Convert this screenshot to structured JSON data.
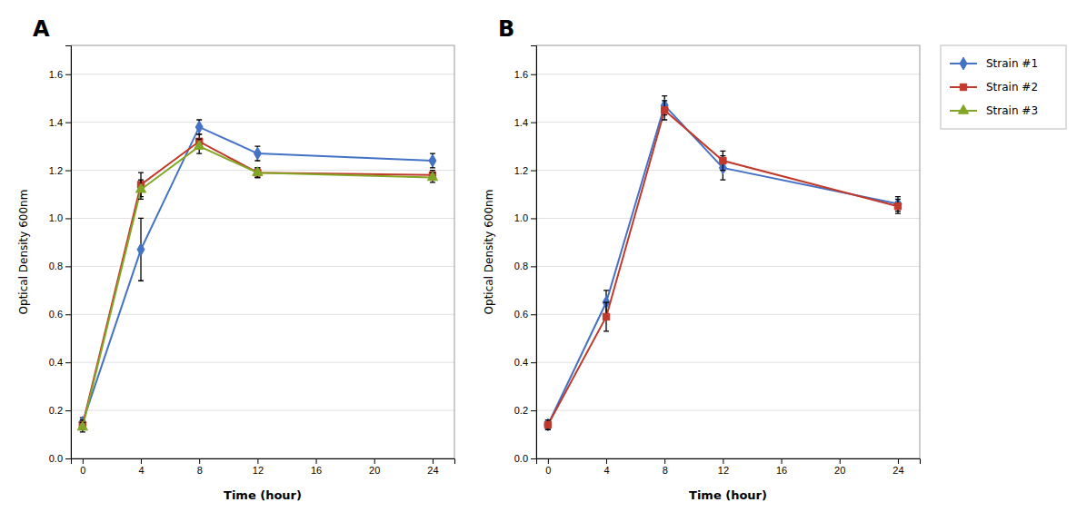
{
  "chart_data": [
    {
      "type": "line",
      "title": "A",
      "x": [
        0,
        4,
        8,
        12,
        24
      ],
      "xlabel": "Time (hour)",
      "ylabel": "Optical Density 600nm",
      "xlim": [
        -0.8,
        25.5
      ],
      "xticks": [
        0,
        4,
        8,
        12,
        16,
        20,
        24
      ],
      "ylim": [
        0,
        1.72
      ],
      "yticks": [
        {
          "value": 0,
          "label": "0.0"
        },
        0.2,
        0.4,
        0.6,
        0.8,
        {
          "value": 1.0,
          "label": "1.0"
        },
        1.2,
        1.4,
        1.6
      ],
      "grid": "y",
      "legend": "upper right",
      "series": [
        {
          "name": "Strain #1",
          "color": "#4472C4",
          "marker": "diamond",
          "values": [
            0.15,
            0.87,
            1.38,
            1.27,
            1.24
          ],
          "errors": [
            0.02,
            0.13,
            0.03,
            0.03,
            0.03
          ]
        },
        {
          "name": "Strain #2",
          "color": "#C0392B",
          "marker": "square",
          "values": [
            0.14,
            1.14,
            1.32,
            1.19,
            1.18
          ],
          "errors": [
            0.02,
            0.05,
            0.03,
            0.02,
            0.02
          ]
        },
        {
          "name": "Strain #3",
          "color": "#84A626",
          "marker": "triangle",
          "values": [
            0.13,
            1.12,
            1.3,
            1.19,
            1.17
          ],
          "errors": [
            0.02,
            0.04,
            0.03,
            0.02,
            0.02
          ]
        }
      ]
    },
    {
      "type": "line",
      "title": "B",
      "x": [
        0,
        4,
        8,
        12,
        24
      ],
      "xlabel": "Time (hour)",
      "ylabel": "Optical Density 600nm",
      "xlim": [
        -0.8,
        25.5
      ],
      "xticks": [
        0,
        4,
        8,
        12,
        16,
        20,
        24
      ],
      "ylim": [
        0,
        1.72
      ],
      "yticks": [
        {
          "value": 0,
          "label": "0.0"
        },
        0.2,
        0.4,
        0.6,
        0.8,
        {
          "value": 1.0,
          "label": "1.0"
        },
        1.2,
        1.4,
        1.6
      ],
      "grid": "y",
      "series": [
        {
          "name": "Strain #1",
          "color": "#4472C4",
          "marker": "diamond",
          "values": [
            0.14,
            0.65,
            1.47,
            1.21,
            1.06
          ],
          "errors": [
            0.02,
            0.05,
            0.04,
            0.05,
            0.03
          ]
        },
        {
          "name": "Strain #2",
          "color": "#C0392B",
          "marker": "square",
          "values": [
            0.14,
            0.59,
            1.45,
            1.24,
            1.05
          ],
          "errors": [
            0.02,
            0.06,
            0.04,
            0.04,
            0.03
          ]
        }
      ]
    }
  ]
}
